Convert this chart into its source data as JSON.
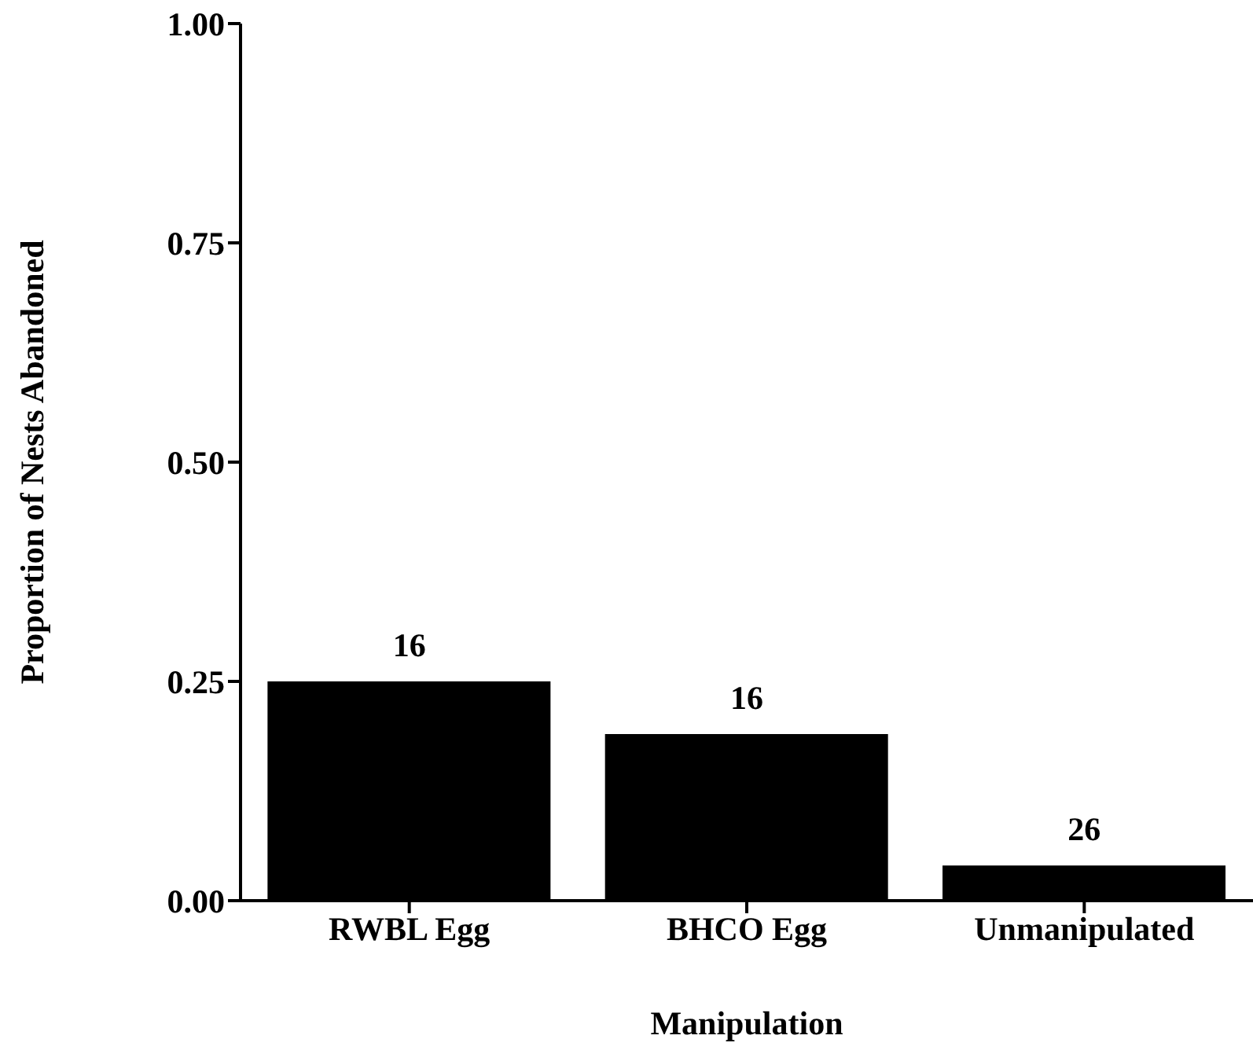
{
  "chart_data": {
    "type": "bar",
    "xlabel": "Manipulation",
    "ylabel": "Proportion of Nests Abandoned",
    "categories": [
      "RWBL Egg",
      "BHCO Egg",
      "Unmanipulated"
    ],
    "values": [
      0.25,
      0.19,
      0.04
    ],
    "color": "#000000",
    "ylim": [
      0,
      1
    ],
    "yticks": [
      {
        "value": 0,
        "label": "0.00"
      },
      {
        "value": 0.25,
        "label": "0.25"
      },
      {
        "value": 0.5,
        "label": "0.50"
      },
      {
        "value": 0.75,
        "label": "0.75"
      },
      {
        "value": 1,
        "label": "1.00"
      }
    ],
    "annotations": [
      {
        "text": "16",
        "x": "RWBL Egg",
        "y": 0.25
      },
      {
        "text": "16",
        "x": "BHCO Egg",
        "y": 0.19
      },
      {
        "text": "26",
        "x": "Unmanipulated",
        "y": 0.04
      }
    ],
    "grid": false,
    "legend": false
  }
}
